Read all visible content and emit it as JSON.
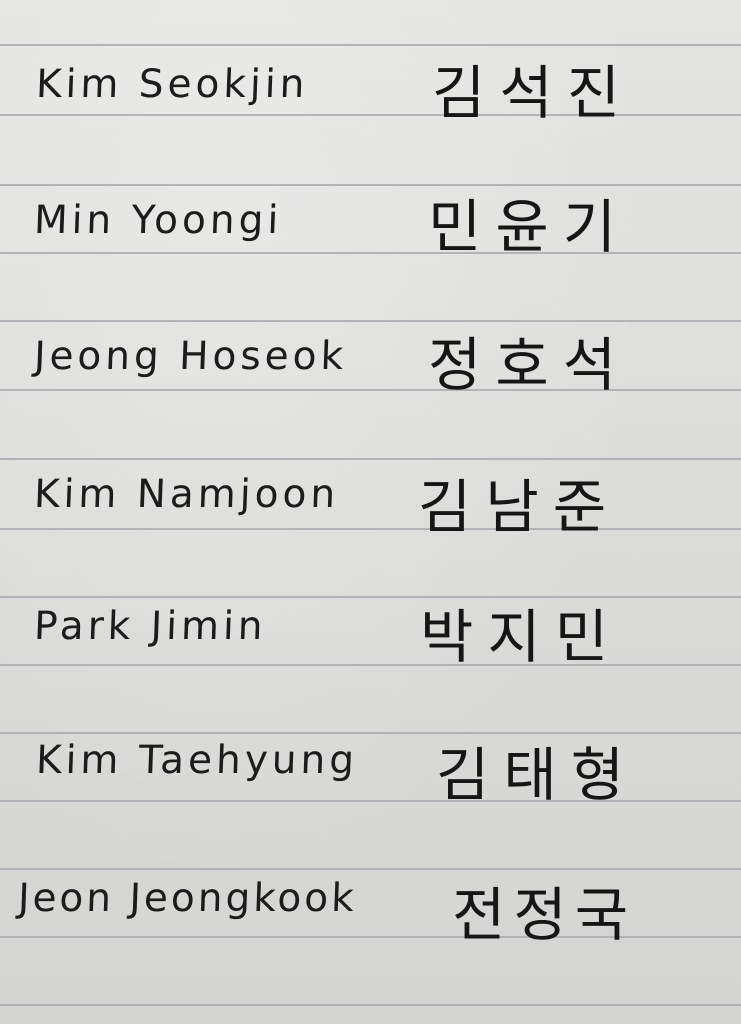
{
  "entries": [
    {
      "roman": "Kim  Seokjin",
      "hangul": "김석진"
    },
    {
      "roman": "Min  Yoongi",
      "hangul": "민윤기"
    },
    {
      "roman": "Jeong  Hoseok",
      "hangul": "정호석"
    },
    {
      "roman": "Kim  Namjoon",
      "hangul": "김남준"
    },
    {
      "roman": "Park  Jimin",
      "hangul": "박지민"
    },
    {
      "roman": "Kim  Taehyung",
      "hangul": "김태형"
    },
    {
      "roman": "Jeon  Jeongkook",
      "hangul": "전정국"
    }
  ]
}
